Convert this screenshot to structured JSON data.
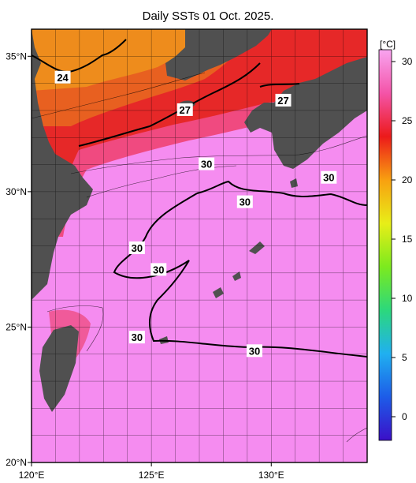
{
  "title": "Daily SSTs 01 Oct. 2025.",
  "unit_label": "[°C]",
  "x_axis": {
    "range": [
      120,
      134
    ],
    "ticks": [
      {
        "value": 120,
        "label": "120°E"
      },
      {
        "value": 125,
        "label": "125°E"
      },
      {
        "value": 130,
        "label": "130°E"
      }
    ]
  },
  "y_axis": {
    "range": [
      20,
      36
    ],
    "ticks": [
      {
        "value": 20,
        "label": "20°N"
      },
      {
        "value": 25,
        "label": "25°N"
      },
      {
        "value": 30,
        "label": "30°N"
      },
      {
        "value": 35,
        "label": "35°N"
      }
    ]
  },
  "grid": true,
  "contour_labels": [
    {
      "text": "24",
      "lon": 121.3,
      "lat": 34.2
    },
    {
      "text": "27",
      "lon": 126.4,
      "lat": 33.0
    },
    {
      "text": "27",
      "lon": 130.5,
      "lat": 33.35
    },
    {
      "text": "30",
      "lon": 127.3,
      "lat": 31.0
    },
    {
      "text": "30",
      "lon": 128.9,
      "lat": 29.6
    },
    {
      "text": "30",
      "lon": 132.4,
      "lat": 30.5
    },
    {
      "text": "30",
      "lon": 124.4,
      "lat": 27.9
    },
    {
      "text": "30",
      "lon": 125.3,
      "lat": 27.1
    },
    {
      "text": "30",
      "lon": 124.4,
      "lat": 24.6
    },
    {
      "text": "30",
      "lon": 129.3,
      "lat": 24.1
    }
  ],
  "colorbar": {
    "range": [
      -2,
      31
    ],
    "ticks": [
      {
        "value": 0,
        "label": "0"
      },
      {
        "value": 5,
        "label": "5"
      },
      {
        "value": 10,
        "label": "10"
      },
      {
        "value": 15,
        "label": "15"
      },
      {
        "value": 20,
        "label": "20"
      },
      {
        "value": 25,
        "label": "25"
      },
      {
        "value": 30,
        "label": "30"
      }
    ],
    "colors": [
      "#3b0fc8",
      "#1d5ce8",
      "#20b0f0",
      "#2cd87c",
      "#7cea1e",
      "#e8ee18",
      "#f8a010",
      "#ec1a1a",
      "#f454a8",
      "#f8a4f0"
    ]
  },
  "colors": {
    "land": "#505050",
    "ocean_warm": "#f48cf0",
    "ocean_hot": "#e42a2a",
    "ocean_cool": "#ef8a20"
  }
}
